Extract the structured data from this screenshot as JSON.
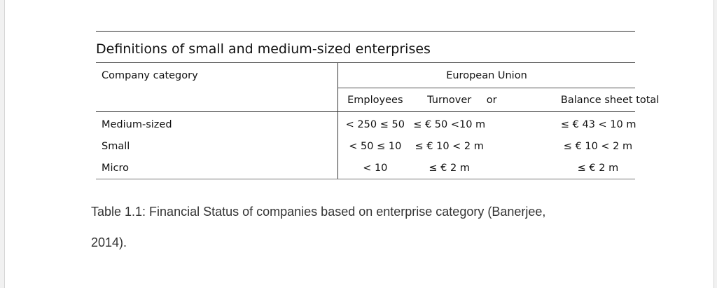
{
  "table": {
    "title": "Definitions of small and medium-sized enterprises",
    "header": {
      "category_label": "Company category",
      "group_label": "European Union",
      "columns": [
        "Employees",
        "Turnover",
        "or",
        "Balance sheet total"
      ]
    },
    "rows": [
      {
        "category": "Medium-sized",
        "employees": "< 250 ≤ 50",
        "turnover": "≤ € 50 <10 m",
        "balance": "≤ € 43 < 10 m"
      },
      {
        "category": "Small",
        "employees": "< 50 ≤ 10",
        "turnover": "≤ € 10 < 2 m",
        "balance": "≤ € 10 < 2 m"
      },
      {
        "category": "Micro",
        "employees": "< 10",
        "turnover": "≤ € 2 m",
        "balance": "≤ € 2 m"
      }
    ]
  },
  "caption": {
    "line1": "Table 1.1: Financial Status of companies based on enterprise category (Banerjee,",
    "line2": "2014)."
  }
}
